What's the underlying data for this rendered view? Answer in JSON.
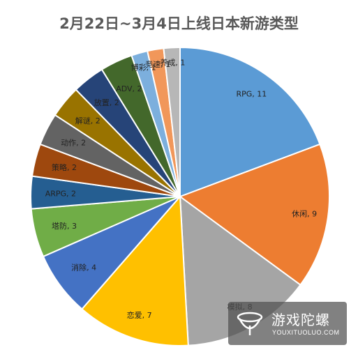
{
  "chart_data": {
    "type": "pie",
    "title": "2月22日~3月4日上线日本新游类型",
    "slices": [
      {
        "label": "RPG",
        "value": 11,
        "color": "#5b9bd5",
        "data_label": "RPG, 11"
      },
      {
        "label": "休闲",
        "value": 9,
        "color": "#ed7d31",
        "data_label": "休闲, 9"
      },
      {
        "label": "模拟",
        "value": 8,
        "color": "#a5a5a5",
        "data_label": "模拟, 8"
      },
      {
        "label": "恋爱",
        "value": 7,
        "color": "#ffc000",
        "data_label": "恋爱, 7"
      },
      {
        "label": "消除",
        "value": 4,
        "color": "#4472c4",
        "data_label": "消除, 4"
      },
      {
        "label": "塔防",
        "value": 3,
        "color": "#70ad47",
        "data_label": "塔防, 3"
      },
      {
        "label": "ARPG",
        "value": 2,
        "color": "#255e91",
        "data_label": "ARPG, 2"
      },
      {
        "label": "策略",
        "value": 2,
        "color": "#9e480e",
        "data_label": "策略, 2"
      },
      {
        "label": "动作",
        "value": 2,
        "color": "#636363",
        "data_label": "动作, 2"
      },
      {
        "label": "解谜",
        "value": 2,
        "color": "#997300",
        "data_label": "解谜, 2"
      },
      {
        "label": "放置",
        "value": 2,
        "color": "#264478",
        "data_label": "放置, 2"
      },
      {
        "label": "ADV",
        "value": 2,
        "color": "#43682b",
        "data_label": "ADV, 2"
      },
      {
        "label": "博彩",
        "value": 1,
        "color": "#7cafdd",
        "data_label": "博彩, 1"
      },
      {
        "label": "竞速",
        "value": 1,
        "color": "#f1975a",
        "data_label": "竞速, 1"
      },
      {
        "label": "养成",
        "value": 1,
        "color": "#b7b7b7",
        "data_label": "养成, 1"
      }
    ]
  },
  "watermark": {
    "name": "游戏陀螺",
    "url": "YOUXITUOLUO.COM"
  }
}
